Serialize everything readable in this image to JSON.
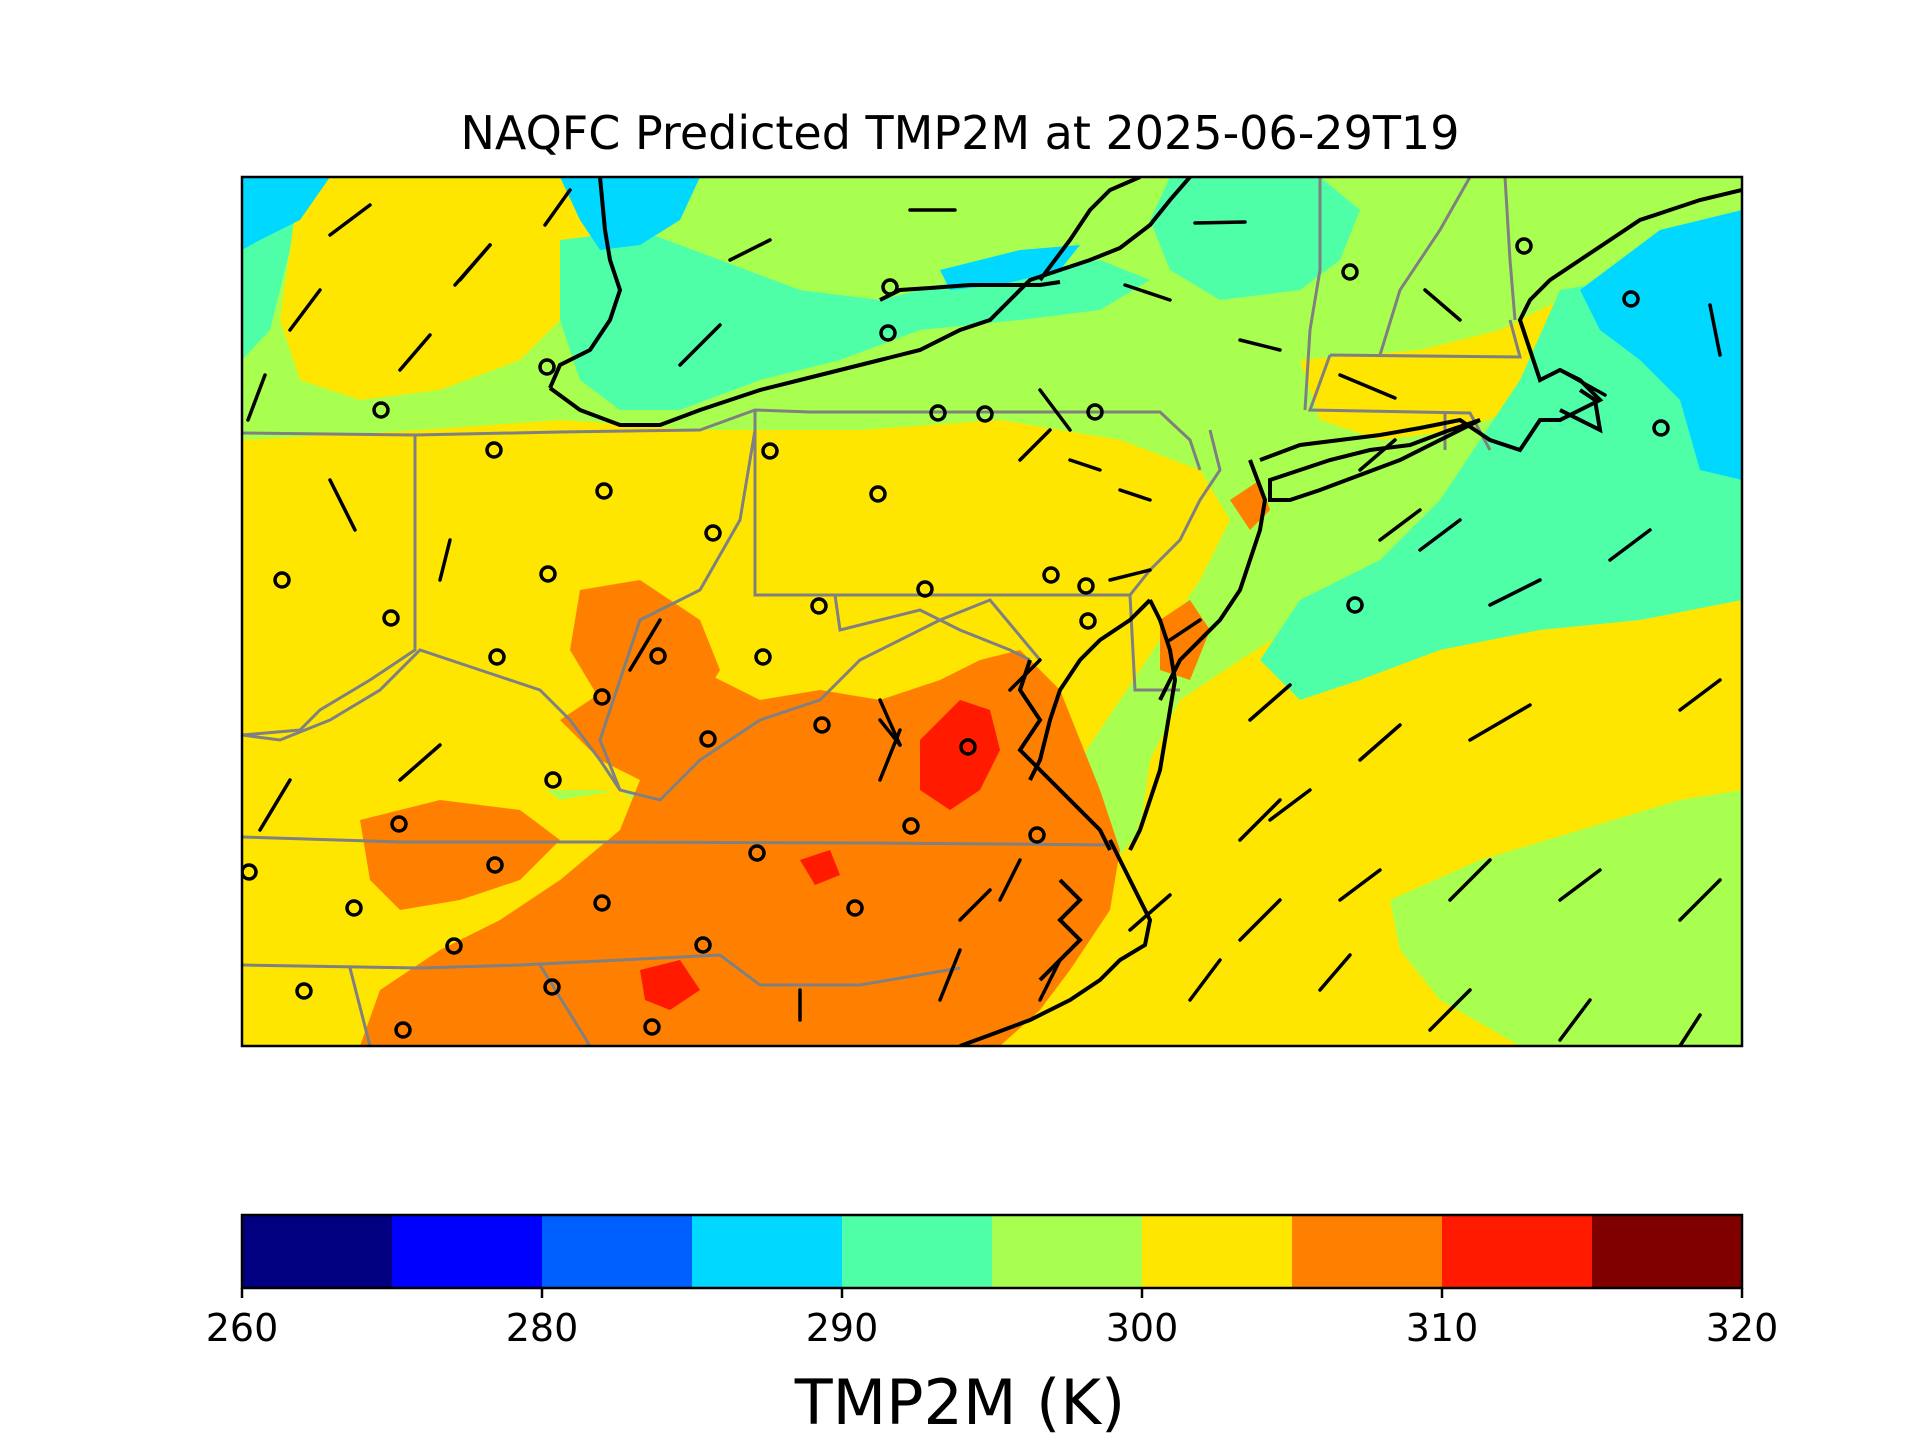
{
  "title": "NAQFC Predicted TMP2M at 2025-06-29T19",
  "colorbar": {
    "label": "TMP2M (K)",
    "tick_labels": [
      "260",
      "280",
      "290",
      "300",
      "310",
      "320"
    ],
    "ticks": [
      260,
      280,
      290,
      300,
      310,
      320
    ],
    "bins": [
      {
        "from": 260,
        "to": 265,
        "color": "#000080"
      },
      {
        "from": 265,
        "to": 280,
        "color": "#0000ff"
      },
      {
        "from": 280,
        "to": 285,
        "color": "#0060ff"
      },
      {
        "from": 285,
        "to": 290,
        "color": "#00d8ff"
      },
      {
        "from": 290,
        "to": 295,
        "color": "#4fffa8"
      },
      {
        "from": 295,
        "to": 300,
        "color": "#a8ff4f"
      },
      {
        "from": 300,
        "to": 305,
        "color": "#ffe600"
      },
      {
        "from": 305,
        "to": 310,
        "color": "#ff8000"
      },
      {
        "from": 310,
        "to": 315,
        "color": "#ff1a00"
      },
      {
        "from": 315,
        "to": 320,
        "color": "#800000"
      }
    ]
  },
  "map": {
    "field_colors": {
      "cyan": "#00d8ff",
      "aqua": "#4fffa8",
      "lime": "#a8ff4f",
      "yellow": "#ffe600",
      "orange": "#ff8000",
      "red": "#ff1a00"
    },
    "coastline_color": "#000000",
    "boundary_color": "#808080",
    "symbols": [
      "station-circle",
      "wind-barb"
    ]
  }
}
